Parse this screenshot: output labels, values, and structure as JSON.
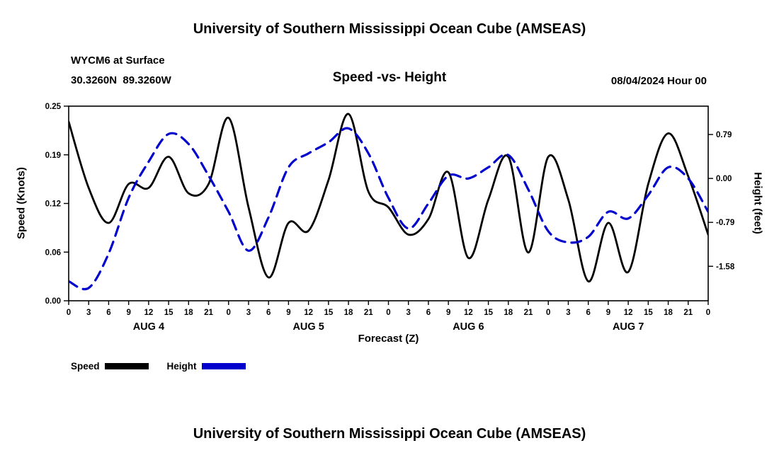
{
  "page": {
    "title_top": "University of Southern Mississippi Ocean Cube (AMSEAS)",
    "title_bottom": "University of Southern Mississippi Ocean Cube (AMSEAS)"
  },
  "header": {
    "station": "WYCM6 at Surface",
    "coordinates": "30.3260N  89.3260W",
    "subtitle": "Speed -vs- Height",
    "datetime": "08/04/2024 Hour 00"
  },
  "legend": {
    "speed_label": "Speed",
    "height_label": "Height"
  },
  "chart_data": {
    "type": "line",
    "title": "Speed -vs- Height",
    "xlabel": "Forecast (Z)",
    "ylabel_left": "Speed (Knots)",
    "ylabel_right": "Height (feet)",
    "x_max": 96,
    "grid": false,
    "legend_position": "bottom-left",
    "x_hours": [
      0,
      3,
      6,
      9,
      12,
      15,
      18,
      21,
      24,
      27,
      30,
      33,
      36,
      39,
      42,
      45,
      48,
      51,
      54,
      57,
      60,
      63,
      66,
      69,
      72,
      75,
      78,
      81,
      84,
      87,
      90,
      93,
      96
    ],
    "x_tick_labels": [
      "0",
      "3",
      "6",
      "9",
      "12",
      "15",
      "18",
      "21",
      "0",
      "3",
      "6",
      "9",
      "12",
      "15",
      "18",
      "21",
      "0",
      "3",
      "6",
      "9",
      "12",
      "15",
      "18",
      "21",
      "0",
      "3",
      "6",
      "9",
      "12",
      "15",
      "18",
      "21",
      "0"
    ],
    "day_labels": [
      {
        "label": "AUG 4",
        "hour": 12
      },
      {
        "label": "AUG 5",
        "hour": 36
      },
      {
        "label": "AUG 6",
        "hour": 60
      },
      {
        "label": "AUG 7",
        "hour": 84
      }
    ],
    "left_axis": {
      "min": 0,
      "max": 0.25,
      "ticks": [
        {
          "value": 0.0,
          "label": "0.00"
        },
        {
          "value": 0.0625,
          "label": "0.06"
        },
        {
          "value": 0.125,
          "label": "0.12"
        },
        {
          "value": 0.1875,
          "label": "0.19"
        },
        {
          "value": 0.25,
          "label": "0.25"
        }
      ]
    },
    "right_axis": {
      "min": -2.2,
      "max": 1.3,
      "ticks": [
        {
          "value": 0.79,
          "label": "0.79"
        },
        {
          "value": 0.0,
          "label": "0.00"
        },
        {
          "value": -0.79,
          "label": "-0.79"
        },
        {
          "value": -1.58,
          "label": "-1.58"
        }
      ]
    },
    "series": [
      {
        "name": "Speed",
        "axis": "left",
        "color": "#000000",
        "style": "solid",
        "width": 2.8,
        "values": [
          0.23,
          0.145,
          0.1,
          0.15,
          0.145,
          0.185,
          0.138,
          0.15,
          0.235,
          0.12,
          0.03,
          0.1,
          0.09,
          0.155,
          0.24,
          0.14,
          0.12,
          0.085,
          0.105,
          0.165,
          0.055,
          0.13,
          0.185,
          0.062,
          0.185,
          0.13,
          0.025,
          0.1,
          0.037,
          0.15,
          0.215,
          0.16,
          0.085
        ]
      },
      {
        "name": "Height",
        "axis": "right",
        "color": "#0000cd",
        "style": "dashed",
        "width": 3.2,
        "values": [
          -1.85,
          -1.97,
          -1.35,
          -0.35,
          0.3,
          0.8,
          0.62,
          0.05,
          -0.6,
          -1.3,
          -0.7,
          0.2,
          0.45,
          0.65,
          0.9,
          0.45,
          -0.35,
          -0.9,
          -0.45,
          0.05,
          0.0,
          0.2,
          0.42,
          -0.2,
          -0.95,
          -1.15,
          -1.05,
          -0.6,
          -0.72,
          -0.3,
          0.2,
          0.0,
          -0.6
        ]
      }
    ]
  }
}
